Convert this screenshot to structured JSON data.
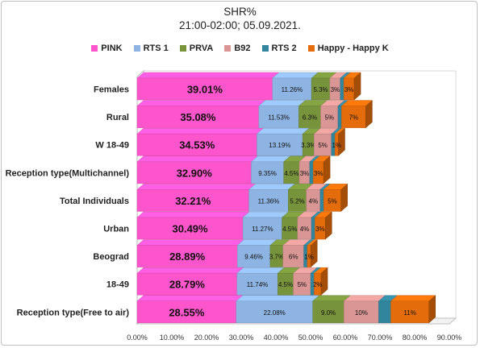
{
  "chart_data": {
    "type": "bar",
    "orientation": "horizontal-stacked-3d",
    "title": [
      "SHR%",
      "21:00-02:00; 05.09.2021."
    ],
    "legend_position": "top",
    "grid": false,
    "xlim": [
      0,
      90
    ],
    "x_ticks": [
      "0.00%",
      "10.00%",
      "20.00%",
      "30.00%",
      "40.00%",
      "50.00%",
      "60.00%",
      "70.00%",
      "80.00%",
      "90.00%"
    ],
    "categories": [
      "Females",
      "Rural",
      "W 18-49",
      "Reception type(Multichannel)",
      "Total Individuals",
      "Urban",
      "Beograd",
      "18-49",
      "Reception type(Free to air)"
    ],
    "series": [
      {
        "name": "PINK",
        "color": "#ff55cc",
        "values": [
          39.01,
          35.08,
          34.53,
          32.9,
          32.21,
          30.49,
          28.89,
          28.79,
          28.55
        ],
        "labels": [
          "39.01%",
          "35.08%",
          "34.53%",
          "32.90%",
          "32.21%",
          "30.49%",
          "28.89%",
          "28.79%",
          "28.55%"
        ]
      },
      {
        "name": "RTS 1",
        "color": "#8eb4e3",
        "values": [
          11.26,
          11.53,
          13.19,
          9.35,
          11.36,
          11.27,
          9.46,
          11.74,
          22.08
        ],
        "labels": [
          "11.26%",
          "11.53%",
          "13.19%",
          "9.35%",
          "11.36%",
          "11.27%",
          "9.46%",
          "11.74%",
          "22.08%"
        ]
      },
      {
        "name": "PRVA",
        "color": "#77933c",
        "values": [
          5.3,
          6.3,
          3.3,
          4.5,
          5.2,
          4.5,
          3.7,
          4.5,
          9.0
        ],
        "labels": [
          "5.3%",
          "6.3%",
          "3.3%",
          "4.5%",
          "5.2%",
          "4.5%",
          "3.7%",
          "4.5%",
          "9.0%"
        ]
      },
      {
        "name": "B92",
        "color": "#d99694",
        "values": [
          3,
          5,
          5,
          3,
          4,
          4,
          6,
          5,
          10
        ],
        "labels": [
          "3%",
          "5%",
          "5%",
          "3%",
          "4%",
          "4%",
          "6%",
          "5%",
          "10%"
        ]
      },
      {
        "name": "RTS 2",
        "color": "#31859c",
        "values": [
          1,
          1,
          1,
          1,
          1,
          1,
          1,
          1,
          3.5
        ],
        "labels": [
          "",
          "",
          "",
          "",
          "",
          "",
          "",
          "",
          ""
        ]
      },
      {
        "name": "Happy - Happy K",
        "color": "#e46c0a",
        "values": [
          3,
          7,
          1,
          3,
          5,
          3,
          1,
          2,
          11
        ],
        "labels": [
          "3%",
          "7%",
          "1%",
          "3%",
          "5%",
          "3%",
          "1%",
          "2%",
          "11%"
        ]
      }
    ]
  }
}
